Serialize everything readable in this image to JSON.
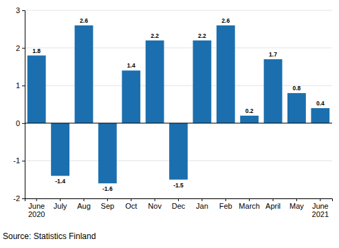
{
  "chart_data": {
    "type": "bar",
    "categories": [
      "June\n2020",
      "July",
      "Aug",
      "Sep",
      "Oct",
      "Nov",
      "Dec",
      "Jan",
      "Feb",
      "March",
      "April",
      "May",
      "June\n2021"
    ],
    "values": [
      1.8,
      -1.4,
      2.6,
      -1.6,
      1.4,
      2.2,
      -1.5,
      2.2,
      2.6,
      0.2,
      1.7,
      0.8,
      0.4
    ],
    "color": "#1b6fae",
    "ylim": [
      -2,
      3
    ],
    "yticks": [
      -2,
      -1,
      0,
      1,
      2,
      3
    ],
    "grid": true,
    "data_labels": true,
    "source": "Source: Statistics Finland"
  }
}
